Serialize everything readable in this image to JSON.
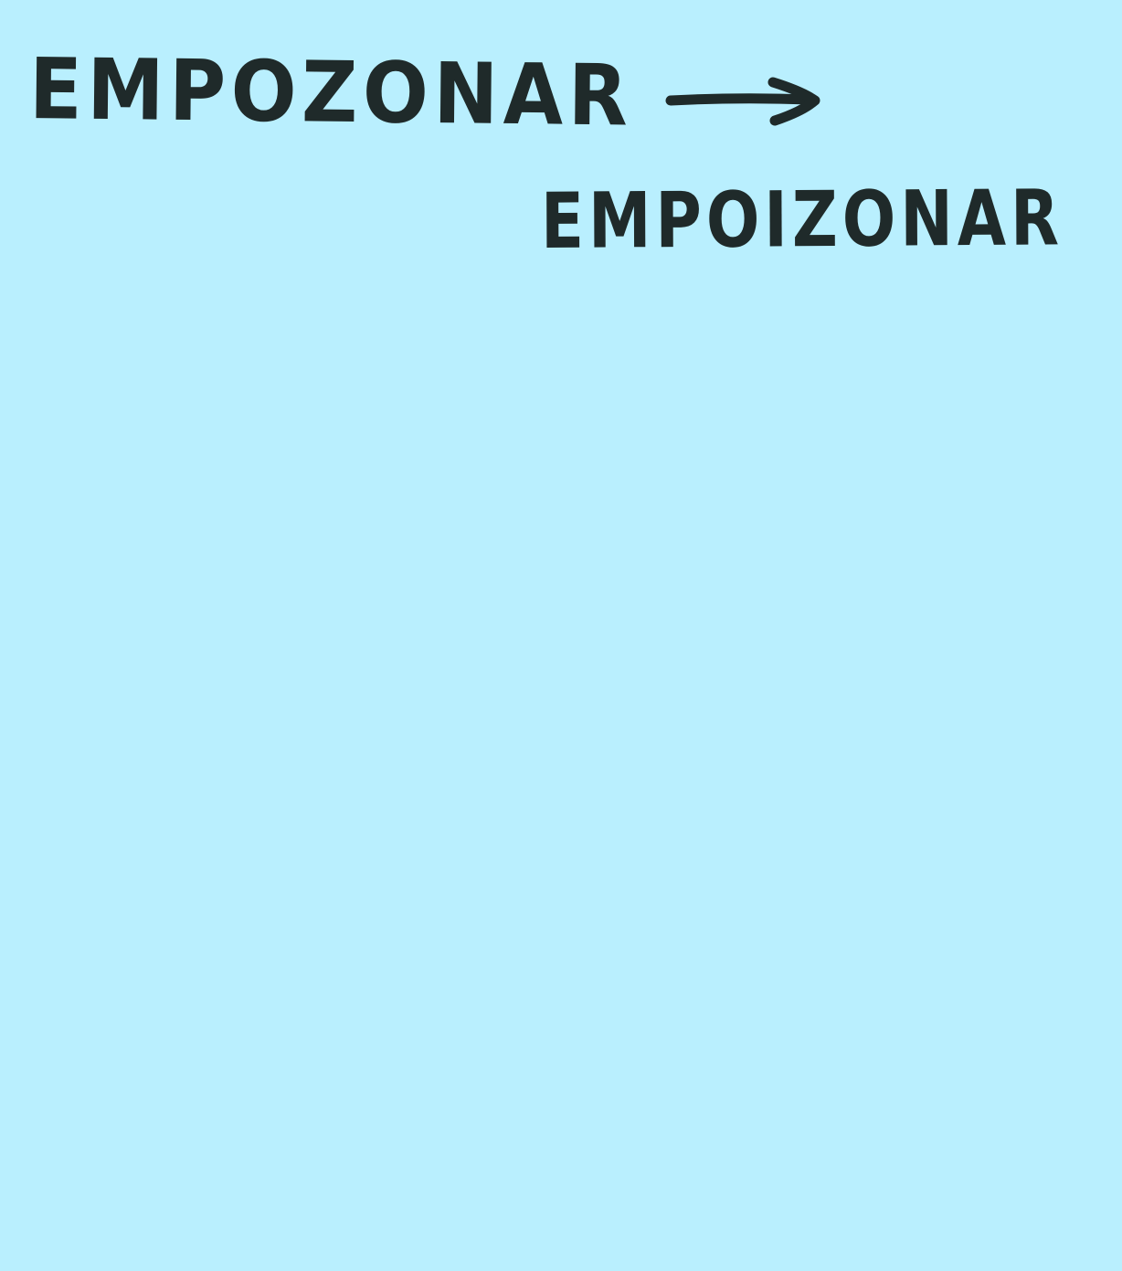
{
  "note": {
    "background_color": "#b9effe",
    "ink_color": "#1f2a2a",
    "original_word": "EMPOZONAR",
    "corrected_word": "EMPOIZONAR",
    "arrow_icon": "right-arrow-icon"
  }
}
